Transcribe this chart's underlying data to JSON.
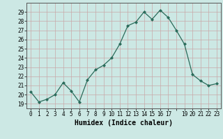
{
  "x": [
    0,
    1,
    2,
    3,
    4,
    5,
    6,
    7,
    8,
    9,
    10,
    11,
    12,
    13,
    14,
    15,
    16,
    17,
    18,
    19,
    20,
    21,
    22,
    23
  ],
  "y": [
    20.3,
    19.2,
    19.5,
    20.0,
    21.3,
    20.4,
    19.2,
    21.6,
    22.7,
    23.2,
    24.0,
    25.5,
    27.5,
    27.9,
    29.0,
    28.2,
    29.2,
    28.4,
    27.0,
    25.5,
    22.2,
    21.5,
    21.0,
    21.2
  ],
  "xlabel": "Humidex (Indice chaleur)",
  "ylim": [
    18.5,
    30.0
  ],
  "xlim": [
    -0.5,
    23.5
  ],
  "bg_color": "#cce8e4",
  "line_color": "#2a6b5a",
  "grid_major_color": "#c8a8a8",
  "grid_minor_color": "#ddc8c8",
  "yticks": [
    19,
    20,
    21,
    22,
    23,
    24,
    25,
    26,
    27,
    28,
    29
  ],
  "xtick_labels": [
    "0",
    "1",
    "2",
    "3",
    "4",
    "5",
    "6",
    "7",
    "8",
    "9",
    "10",
    "11",
    "12",
    "13",
    "14",
    "15",
    "16",
    "17",
    "",
    "19",
    "20",
    "21",
    "22",
    "23"
  ],
  "xlabel_fontsize": 7,
  "tick_fontsize": 5.5
}
